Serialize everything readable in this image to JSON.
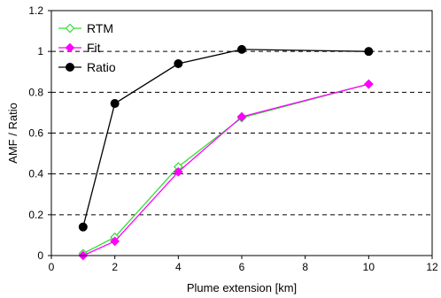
{
  "chart_data": {
    "type": "line",
    "title": "",
    "xlabel": "Plume extension [km]",
    "ylabel": "AMF / Ratio",
    "xlim": [
      0,
      12
    ],
    "ylim": [
      0,
      1.2
    ],
    "xticks": [
      0,
      2,
      4,
      6,
      8,
      10,
      12
    ],
    "yticks": [
      0,
      0.2,
      0.4,
      0.6,
      0.8,
      1,
      1.2
    ],
    "x_tick_labels": [
      "0",
      "2",
      "4",
      "6",
      "8",
      "10",
      "12"
    ],
    "y_tick_labels": [
      "0",
      "0.2",
      "0.4",
      "0.6",
      "0.8",
      "1",
      "1.2"
    ],
    "grid": "horizontal dashed",
    "legend_position": "top-left",
    "series": [
      {
        "name": "RTM",
        "color": "#33dd33",
        "marker": "open-diamond",
        "x": [
          1,
          2,
          4,
          6,
          10
        ],
        "y": [
          0.01,
          0.09,
          0.435,
          0.675,
          0.84
        ]
      },
      {
        "name": "Fit",
        "color": "#ff00ff",
        "marker": "filled-diamond",
        "x": [
          1,
          2,
          4,
          6,
          10
        ],
        "y": [
          0.0,
          0.07,
          0.41,
          0.68,
          0.84
        ]
      },
      {
        "name": "Ratio",
        "color": "#000000",
        "marker": "filled-circle",
        "x": [
          1,
          2,
          4,
          6,
          10
        ],
        "y": [
          0.14,
          0.745,
          0.94,
          1.01,
          1.0
        ]
      }
    ]
  }
}
